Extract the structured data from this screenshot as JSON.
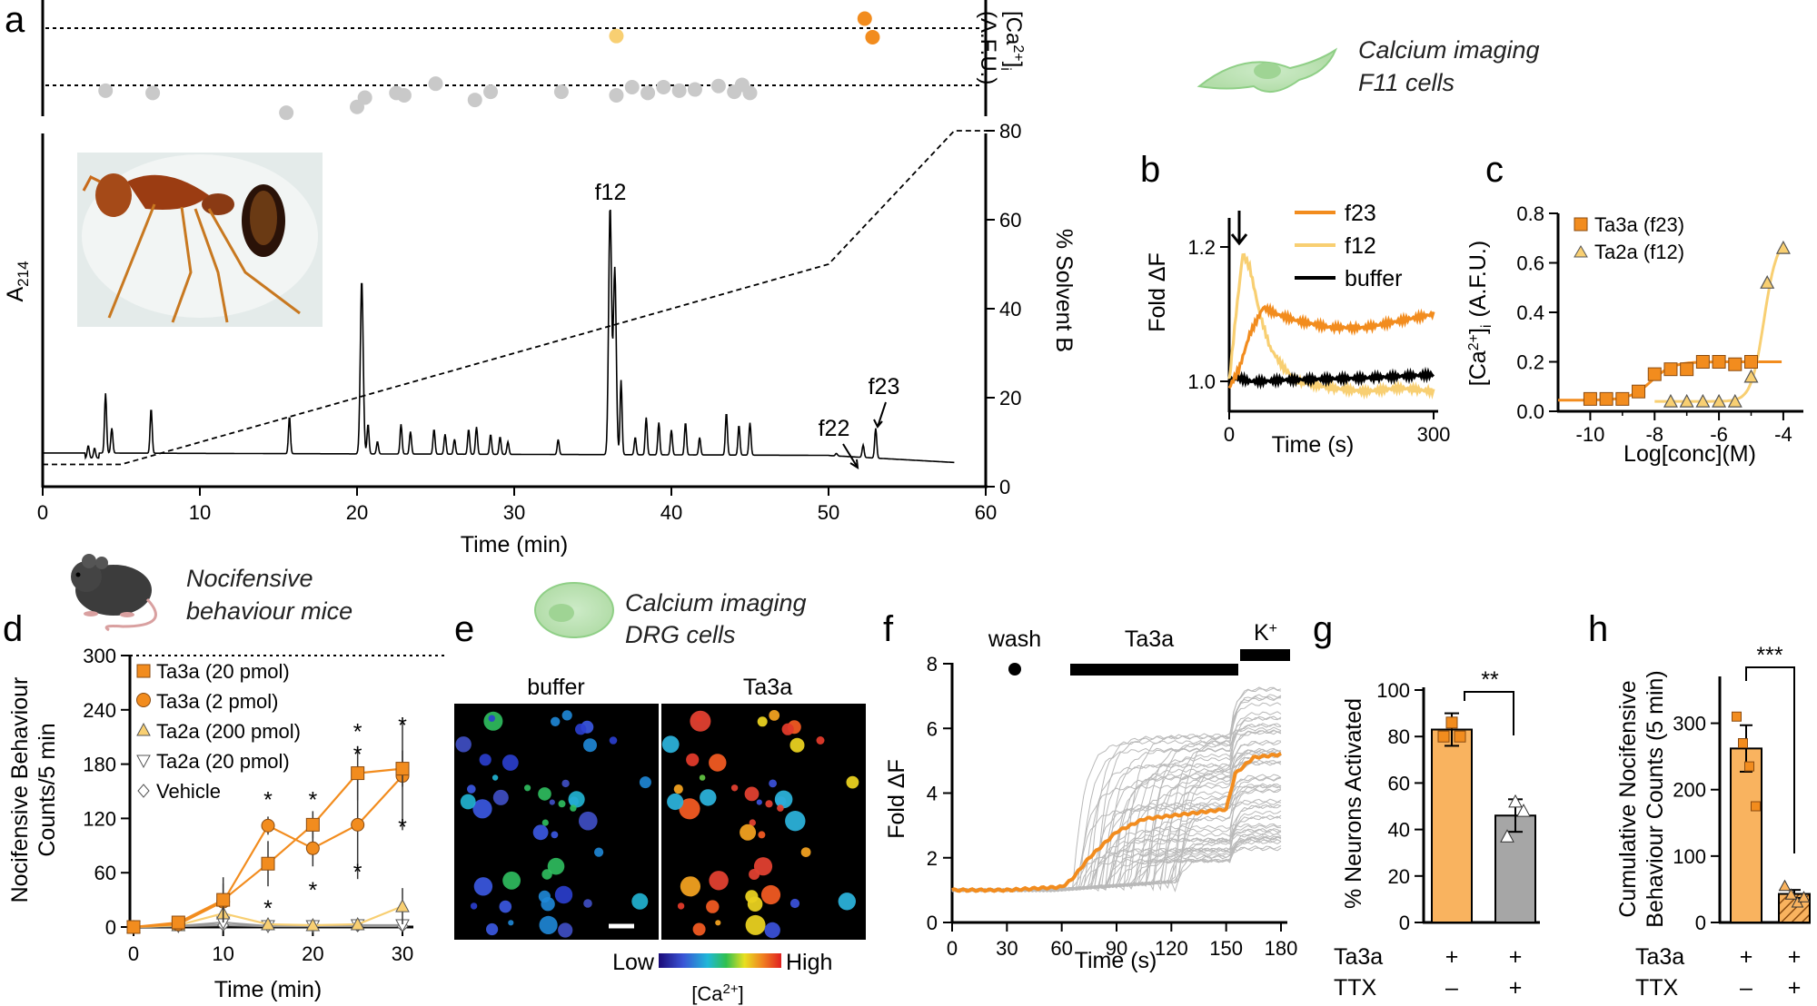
{
  "panels": {
    "a": "a",
    "b": "b",
    "c": "c",
    "d": "d",
    "e": "e",
    "f": "f",
    "g": "g",
    "h": "h"
  },
  "colors": {
    "orange": "#F28C1E",
    "light_orange": "#F8CF72",
    "orange_fill": "#F9B35F",
    "gray_dot": "#C9C9C9",
    "gray_trace": "#B9B9B9",
    "gray_bar": "#A6A6A6",
    "black": "#000000"
  },
  "captions": {
    "f11": [
      "Calcium imaging",
      "F11 cells"
    ],
    "mice": [
      "Nocifensive",
      "behaviour mice"
    ],
    "drg": [
      "Calcium imaging",
      "DRG cells"
    ]
  },
  "panel_a": {
    "xlabel": "Time (min)",
    "ylabel": "A",
    "ylabel_sub": "214",
    "y2label": "% Solvent B",
    "top_label_line1": "[Ca",
    "top_label_sup": "2+",
    "top_label_sub": "i",
    "top_label_line2": "(A.F.U.)",
    "xticks": [
      "0",
      "10",
      "20",
      "30",
      "40",
      "50",
      "60"
    ],
    "y2ticks": [
      "0",
      "20",
      "40",
      "60",
      "80"
    ],
    "peak_labels": [
      "f12",
      "f22",
      "f23"
    ],
    "solvent_gradient": [
      [
        0,
        5
      ],
      [
        5,
        5
      ],
      [
        50,
        50
      ],
      [
        58,
        80
      ],
      [
        60,
        80
      ]
    ],
    "dots_gray": [
      [
        4,
        78
      ],
      [
        7,
        80
      ],
      [
        15.5,
        97
      ],
      [
        20,
        92
      ],
      [
        20.5,
        84
      ],
      [
        22.5,
        80
      ],
      [
        23,
        82
      ],
      [
        25,
        72
      ],
      [
        27.5,
        86
      ],
      [
        28.5,
        79
      ],
      [
        33,
        79
      ],
      [
        36.5,
        82
      ],
      [
        37.5,
        75
      ],
      [
        38.5,
        80
      ],
      [
        39.5,
        75
      ],
      [
        40.5,
        78
      ],
      [
        41.5,
        77
      ],
      [
        43,
        74
      ],
      [
        44.5,
        73
      ],
      [
        45,
        80
      ],
      [
        44,
        79
      ]
    ],
    "dots_light": [
      [
        36.5,
        31
      ]
    ],
    "dots_orange": [
      [
        52.3,
        16
      ],
      [
        52.8,
        32
      ]
    ],
    "chromatogram_peaks": [
      [
        2.9,
        0.05
      ],
      [
        3.3,
        0.04
      ],
      [
        4.0,
        0.24
      ],
      [
        4.4,
        0.1
      ],
      [
        6.9,
        0.18
      ],
      [
        15.7,
        0.15
      ],
      [
        20.3,
        0.7
      ],
      [
        20.7,
        0.12
      ],
      [
        21.3,
        0.05
      ],
      [
        22.8,
        0.12
      ],
      [
        23.4,
        0.09
      ],
      [
        24.9,
        0.1
      ],
      [
        25.6,
        0.08
      ],
      [
        26.2,
        0.06
      ],
      [
        27.1,
        0.1
      ],
      [
        27.6,
        0.11
      ],
      [
        28.5,
        0.08
      ],
      [
        29.1,
        0.07
      ],
      [
        29.6,
        0.05
      ],
      [
        32.8,
        0.06
      ],
      [
        36.1,
        1.0
      ],
      [
        36.4,
        0.75
      ],
      [
        36.8,
        0.3
      ],
      [
        37.7,
        0.07
      ],
      [
        38.4,
        0.15
      ],
      [
        39.2,
        0.13
      ],
      [
        40.0,
        0.1
      ],
      [
        40.9,
        0.13
      ],
      [
        41.8,
        0.07
      ],
      [
        43.5,
        0.17
      ],
      [
        44.3,
        0.12
      ],
      [
        45.0,
        0.13
      ],
      [
        50.5,
        0.01
      ],
      [
        52.2,
        0.05
      ],
      [
        53.0,
        0.12
      ]
    ]
  },
  "panel_b": {
    "xlabel": "Time (s)",
    "ylabel": "Fold ΔF",
    "xticks": [
      "0",
      "300"
    ],
    "yticks": [
      "1.0",
      "1.2"
    ],
    "legend": [
      "f23",
      "f12",
      "buffer"
    ],
    "chart_data": {
      "type": "line",
      "series": [
        {
          "name": "f23",
          "x": [
            0,
            15,
            30,
            50,
            70,
            100,
            150,
            200,
            250,
            300
          ],
          "y": [
            0.99,
            1.02,
            1.07,
            1.11,
            1.1,
            1.09,
            1.08,
            1.08,
            1.09,
            1.1
          ]
        },
        {
          "name": "f12",
          "x": [
            0,
            10,
            20,
            30,
            45,
            60,
            80,
            100,
            150,
            200,
            250,
            300
          ],
          "y": [
            1.0,
            1.1,
            1.19,
            1.17,
            1.1,
            1.05,
            1.02,
            1.0,
            0.99,
            0.985,
            0.99,
            0.985
          ]
        },
        {
          "name": "buffer",
          "x": [
            0,
            15,
            30,
            50,
            80,
            120,
            200,
            300
          ],
          "y": [
            1.0,
            1.005,
            1.0,
            1.0,
            1.002,
            1.003,
            1.005,
            1.01
          ]
        }
      ]
    }
  },
  "panel_c": {
    "xlabel": "Log[conc](M)",
    "ylabel": "[Ca",
    "ylabel_sup": "2+",
    "ylabel_sub": "i",
    "ylabel_end": "(A.F.U.)",
    "xticks": [
      "-10",
      "-8",
      "-6",
      "-4"
    ],
    "yticks": [
      "0.0",
      "0.2",
      "0.4",
      "0.6",
      "0.8"
    ],
    "legend": [
      "Ta3a (f23)",
      "Ta2a (f12)"
    ],
    "chart_data": {
      "type": "scatter",
      "series": [
        {
          "name": "Ta3a (f23)",
          "x": [
            -10,
            -9.5,
            -9,
            -8.5,
            -8,
            -7.5,
            -7,
            -6.5,
            -6,
            -5.5,
            -5
          ],
          "y": [
            0.05,
            0.05,
            0.05,
            0.08,
            0.15,
            0.17,
            0.17,
            0.2,
            0.2,
            0.19,
            0.2
          ]
        },
        {
          "name": "Ta2a (f12)",
          "x": [
            -7.5,
            -7,
            -6.5,
            -6,
            -5.5,
            -5,
            -4.5,
            -4
          ],
          "y": [
            0.04,
            0.04,
            0.04,
            0.04,
            0.04,
            0.14,
            0.52,
            0.66
          ]
        }
      ]
    }
  },
  "panel_d": {
    "xlabel": "Time (min)",
    "ylabel": [
      "Nocifensive Behaviour",
      "Counts/5 min"
    ],
    "xticks": [
      "0",
      "10",
      "20",
      "30"
    ],
    "yticks": [
      "0",
      "60",
      "120",
      "180",
      "240",
      "300"
    ],
    "legend": [
      "Ta3a (20 pmol)",
      "Ta3a (2 pmol)",
      "Ta2a (200 pmol)",
      "Ta2a (20 pmol)",
      "Vehicle"
    ],
    "stars": [
      "*",
      "*",
      "*",
      "*",
      "*",
      "*",
      "*",
      "*",
      "*"
    ],
    "chart_data": {
      "type": "line",
      "x": [
        0,
        5,
        10,
        15,
        20,
        25,
        30
      ],
      "series": [
        {
          "name": "Ta3a (20 pmol)",
          "values": [
            0,
            5,
            30,
            70,
            113,
            170,
            175
          ]
        },
        {
          "name": "Ta3a (2 pmol)",
          "values": [
            0,
            3,
            28,
            112,
            87,
            113,
            167
          ]
        },
        {
          "name": "Ta2a (200 pmol)",
          "values": [
            0,
            2,
            15,
            3,
            2,
            3,
            23
          ]
        },
        {
          "name": "Ta2a (20 pmol)",
          "values": [
            0,
            1,
            5,
            1,
            1,
            2,
            2
          ]
        },
        {
          "name": "Vehicle",
          "values": [
            0,
            1,
            2,
            1,
            1,
            1,
            1
          ]
        }
      ]
    }
  },
  "panel_e": {
    "labels": [
      "buffer",
      "Ta3a"
    ],
    "scale_low": "Low",
    "scale_high": "High",
    "scale_unit": "[Ca",
    "scale_unit_sup": "2+",
    "scale_unit_end": "]"
  },
  "panel_f": {
    "xlabel": "Time (s)",
    "ylabel": "Fold ΔF",
    "xticks": [
      "0",
      "30",
      "60",
      "90",
      "120",
      "150",
      "180"
    ],
    "yticks": [
      "0",
      "2",
      "4",
      "6",
      "8"
    ],
    "wash": "wash",
    "drug": "Ta3a",
    "kcl": "K",
    "kcl_sup": "+",
    "chart_data": {
      "type": "line",
      "series": [
        {
          "name": "mean",
          "x": [
            0,
            30,
            60,
            65,
            75,
            90,
            105,
            120,
            135,
            150,
            155,
            165,
            180
          ],
          "y": [
            1.0,
            1.0,
            1.1,
            1.3,
            2.0,
            2.8,
            3.2,
            3.3,
            3.4,
            3.5,
            4.6,
            5.1,
            5.2
          ]
        }
      ]
    }
  },
  "panel_g": {
    "ylabel": "% Neurons Activated",
    "yticks": [
      "0",
      "20",
      "40",
      "60",
      "80",
      "100"
    ],
    "row1": "Ta3a",
    "row2": "TTX",
    "row1_vals": [
      "+",
      "+"
    ],
    "row2_vals": [
      "–",
      "+"
    ],
    "sig": "**",
    "chart_data": {
      "type": "bar",
      "categories": [
        "Ta3a",
        "Ta3a + TTX"
      ],
      "values": [
        83,
        46
      ],
      "points": [
        [
          80,
          86,
          80
        ],
        [
          37,
          52,
          48
        ]
      ]
    }
  },
  "panel_h": {
    "ylabel": [
      "Cumulative Nocifensive",
      "Behaviour Counts (5 min)"
    ],
    "yticks": [
      "0",
      "100",
      "200",
      "300"
    ],
    "row1": "Ta3a",
    "row2": "TTX",
    "row1_vals": [
      "+",
      "+"
    ],
    "row2_vals": [
      "–",
      "+"
    ],
    "sig": "***",
    "chart_data": {
      "type": "bar",
      "categories": [
        "Ta3a",
        "Ta3a + TTX"
      ],
      "values": [
        262,
        43
      ],
      "points": [
        [
          310,
          270,
          235,
          175
        ],
        [
          55,
          42,
          30,
          38
        ]
      ]
    }
  }
}
